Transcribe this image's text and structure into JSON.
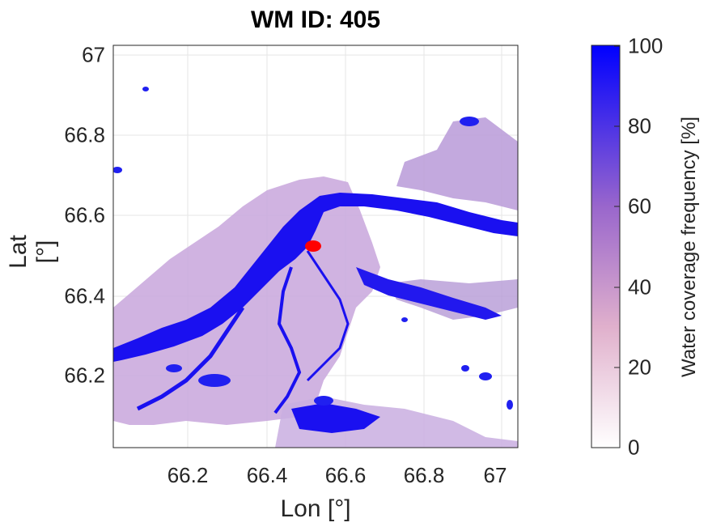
{
  "title": "WM ID: 405",
  "chart_data": {
    "type": "heatmap",
    "title": "WM ID: 405",
    "xlabel": "Lon [°]",
    "ylabel": "Lat [°]",
    "colorbar_label": "Water coverage frequency [%]",
    "x_ticks": [
      "66.2",
      "66.4",
      "66.6",
      "66.8",
      "67"
    ],
    "y_ticks": [
      "67",
      "66.8",
      "66.6",
      "66.4",
      "66.2"
    ],
    "colorbar_ticks": [
      "100",
      "80",
      "60",
      "40",
      "20",
      "0"
    ],
    "xlim": [
      66.02,
      67.05
    ],
    "ylim": [
      66.02,
      67.03
    ],
    "clim": [
      0,
      100
    ],
    "colormap": [
      "#ffffff",
      "#d9a0c0",
      "#9966cc",
      "#0000ff"
    ],
    "grid": true,
    "marker": {
      "lon": 66.53,
      "lat": 66.52,
      "color": "#ff0000"
    }
  }
}
